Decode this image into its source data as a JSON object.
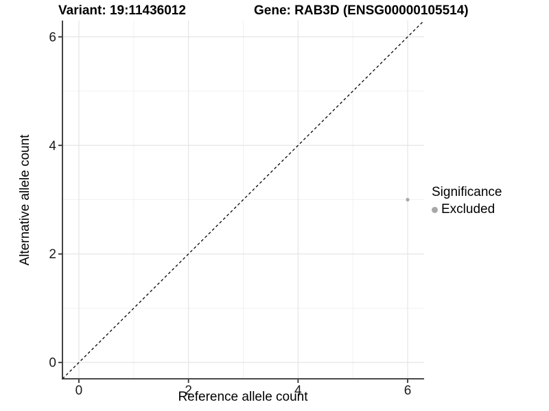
{
  "chart_data": {
    "type": "scatter",
    "titles": {
      "variant": "Variant: 19:11436012",
      "gene": "Gene: RAB3D (ENSG00000105514)"
    },
    "xlabel": "Reference allele count",
    "ylabel": "Alternative allele count",
    "xlim": [
      -0.3,
      6.3
    ],
    "ylim": [
      -0.3,
      6.3
    ],
    "xticks": [
      0,
      2,
      4,
      6
    ],
    "yticks": [
      0,
      2,
      4,
      6
    ],
    "minor_ticks": [
      1,
      3,
      5
    ],
    "grid": {
      "major": true,
      "minor": true
    },
    "points": [
      {
        "x": 6,
        "y": 3,
        "significance": "Excluded"
      }
    ],
    "identity_line": {
      "type": "y=x",
      "from": -0.3,
      "to": 6.3,
      "style": "dashed",
      "color": "#000000"
    },
    "legend": {
      "title": "Significance",
      "position": "right",
      "entries": [
        {
          "label": "Excluded",
          "color": "#a8a8a8"
        }
      ]
    },
    "colors": {
      "point": "#a8a8a8",
      "grid_major": "#e4e4e4",
      "grid_minor": "#f1f1f1",
      "axis": "#2f2f2f",
      "text": "#000000",
      "background": "#ffffff"
    }
  }
}
